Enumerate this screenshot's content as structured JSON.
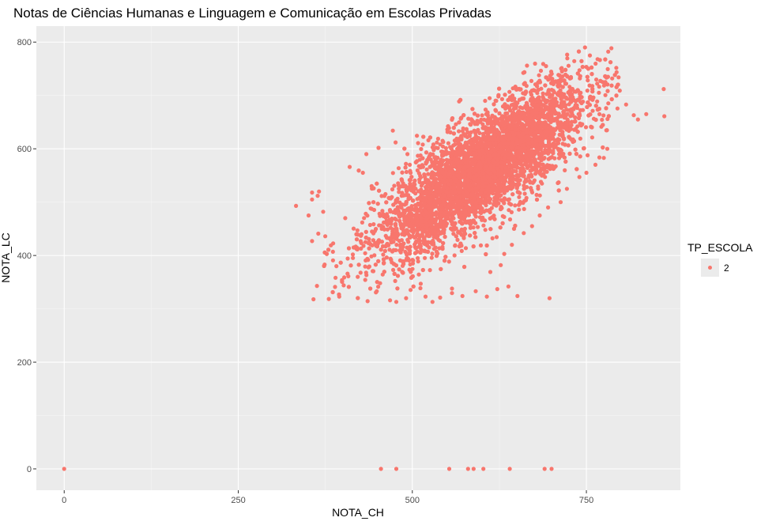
{
  "chart_data": {
    "type": "scatter",
    "title": "Notas de Ciências Humanas e Linguagem e Comunicação em Escolas Privadas",
    "xlabel": "NOTA_CH",
    "ylabel": "NOTA_LC",
    "xlim": [
      -40,
      885
    ],
    "ylim": [
      -40,
      830
    ],
    "x_ticks": [
      0,
      250,
      500,
      750
    ],
    "y_ticks": [
      0,
      200,
      400,
      600,
      800
    ],
    "x_tick_labels": [
      "0",
      "250",
      "500",
      "750"
    ],
    "y_tick_labels": [
      "0",
      "200",
      "400",
      "600",
      "800"
    ],
    "grid": true,
    "background": "#ebebeb",
    "point_color": "#f8766d",
    "legend": {
      "title": "TP_ESCOLA",
      "position": "right",
      "entries": [
        {
          "label": "2",
          "color": "#f8766d"
        }
      ]
    },
    "series": [
      {
        "name": "2",
        "points": [
          [
            0,
            0
          ],
          [
            455,
            0
          ],
          [
            477,
            0
          ],
          [
            553,
            0
          ],
          [
            580,
            0
          ],
          [
            588,
            0
          ],
          [
            602,
            0
          ],
          [
            640,
            0
          ],
          [
            690,
            0
          ],
          [
            700,
            0
          ],
          [
            333,
            493
          ],
          [
            351,
            475
          ],
          [
            356,
            518
          ],
          [
            356,
            505
          ],
          [
            364,
            512
          ],
          [
            366,
            520
          ],
          [
            372,
            482
          ],
          [
            356,
            427
          ],
          [
            365,
            441
          ],
          [
            375,
            436
          ],
          [
            383,
            419
          ],
          [
            386,
            407
          ],
          [
            391,
            380
          ],
          [
            358,
            318
          ],
          [
            363,
            343
          ],
          [
            374,
            383
          ],
          [
            389,
            341
          ],
          [
            395,
            323
          ],
          [
            399,
            354
          ],
          [
            407,
            366
          ],
          [
            410,
            566
          ],
          [
            429,
            555
          ],
          [
            434,
            590
          ],
          [
            472,
            634
          ],
          [
            476,
            612
          ],
          [
            493,
            590
          ],
          [
            508,
            587
          ],
          [
            515,
            608
          ],
          [
            534,
            602
          ],
          [
            546,
            593
          ],
          [
            573,
            638
          ],
          [
            449,
            333
          ],
          [
            468,
            316
          ],
          [
            477,
            313
          ],
          [
            491,
            320
          ],
          [
            512,
            347
          ],
          [
            519,
            323
          ],
          [
            529,
            313
          ],
          [
            540,
            321
          ],
          [
            557,
            338
          ],
          [
            572,
            324
          ],
          [
            591,
            333
          ],
          [
            607,
            323
          ],
          [
            622,
            337
          ],
          [
            638,
            342
          ],
          [
            651,
            324
          ],
          [
            697,
            320
          ],
          [
            629,
            693
          ],
          [
            649,
            687
          ],
          [
            664,
            718
          ],
          [
            680,
            680
          ],
          [
            688,
            759
          ],
          [
            692,
            755
          ],
          [
            698,
            737
          ],
          [
            715,
            745
          ],
          [
            721,
            722
          ],
          [
            735,
            707
          ],
          [
            748,
            790
          ],
          [
            755,
            775
          ],
          [
            766,
            768
          ],
          [
            768,
            705
          ],
          [
            781,
            735
          ],
          [
            795,
            720
          ],
          [
            798,
            709
          ],
          [
            807,
            683
          ],
          [
            818,
            663
          ],
          [
            824,
            655
          ],
          [
            836,
            665
          ],
          [
            861,
            712
          ],
          [
            862,
            661
          ],
          [
            780,
            600
          ],
          [
            775,
            583
          ],
          [
            763,
            570
          ],
          [
            750,
            555
          ],
          [
            740,
            547
          ],
          [
            722,
            525
          ],
          [
            713,
            500
          ],
          [
            695,
            490
          ],
          [
            683,
            475
          ],
          [
            672,
            455
          ],
          [
            660,
            442
          ],
          [
            643,
            420
          ],
          [
            632,
            403
          ],
          [
            627,
            382
          ],
          [
            612,
            369
          ]
        ],
        "density_cloud": {
          "x_range": [
            365,
            800
          ],
          "center": [
            600,
            560
          ],
          "slope": 0.87,
          "spread_sd": 48,
          "n_points": 6000
        }
      }
    ]
  }
}
